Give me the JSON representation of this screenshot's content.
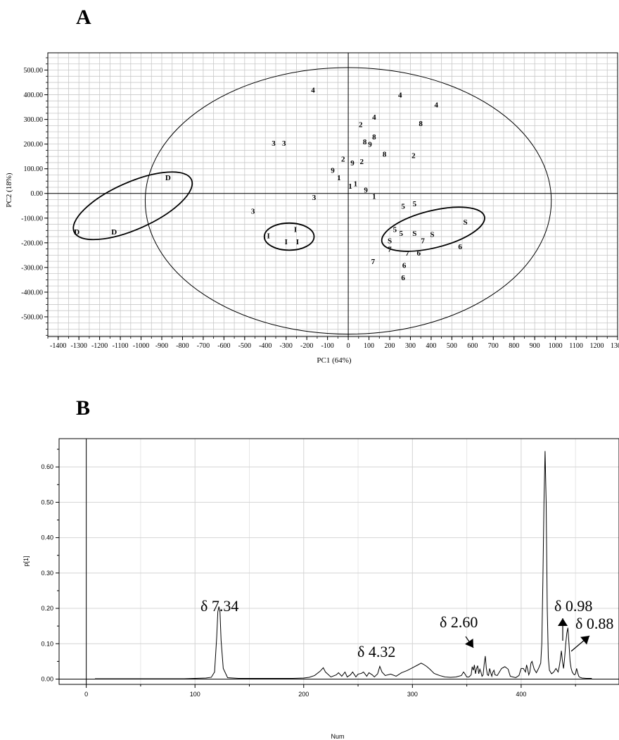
{
  "panels": {
    "a_label": "A",
    "b_label": "B"
  },
  "chart_data": [
    {
      "type": "scatter",
      "title": "",
      "xlabel": "PC1 (64%)",
      "ylabel": "PC2 (18%)",
      "xlim": [
        -1450,
        1300
      ],
      "ylim": [
        -580,
        570
      ],
      "xticks": [
        -1400,
        -1300,
        -1200,
        -1100,
        -1000,
        -900,
        -800,
        -700,
        -600,
        -500,
        -400,
        -300,
        -200,
        -100,
        0,
        100,
        200,
        300,
        400,
        500,
        600,
        700,
        800,
        900,
        1000,
        1100,
        1200,
        1300
      ],
      "xtick_labels": [
        "-1400",
        "-1300",
        "-1200",
        "-1100",
        "-1000",
        "-900",
        "-800",
        "-700",
        "-600",
        "-500",
        "-400",
        "-300",
        "-200",
        "-100",
        "0",
        "100",
        "200",
        "300",
        "400",
        "500",
        "600",
        "700",
        "800",
        "900",
        "1000",
        "1100",
        "1200",
        "1300"
      ],
      "yticks": [
        500,
        400,
        300,
        200,
        100,
        0,
        -100,
        -200,
        -300,
        -400,
        -500
      ],
      "ytick_labels": [
        "500.00",
        "400.00",
        "300.00",
        "200.00",
        "100.00",
        "0.00",
        "-100.00",
        "-200.00",
        "-300.00",
        "-400.00",
        "-500.00"
      ],
      "grid": true,
      "points": [
        {
          "label": "4",
          "x": -170,
          "y": 420
        },
        {
          "label": "4",
          "x": 250,
          "y": 400
        },
        {
          "label": "4",
          "x": 425,
          "y": 360
        },
        {
          "label": "4",
          "x": 125,
          "y": 310
        },
        {
          "label": "2",
          "x": 60,
          "y": 280
        },
        {
          "label": "8",
          "x": 350,
          "y": 285
        },
        {
          "label": "8",
          "x": 125,
          "y": 230
        },
        {
          "label": "8",
          "x": 80,
          "y": 210
        },
        {
          "label": "9",
          "x": 105,
          "y": 200
        },
        {
          "label": "8",
          "x": 175,
          "y": 160
        },
        {
          "label": "2",
          "x": 315,
          "y": 155
        },
        {
          "label": "3",
          "x": -360,
          "y": 205
        },
        {
          "label": "3",
          "x": -310,
          "y": 205
        },
        {
          "label": "2",
          "x": -25,
          "y": 140
        },
        {
          "label": "9",
          "x": 20,
          "y": 125
        },
        {
          "label": "2",
          "x": 65,
          "y": 130
        },
        {
          "label": "9",
          "x": -75,
          "y": 95
        },
        {
          "label": "1",
          "x": -45,
          "y": 65
        },
        {
          "label": "1",
          "x": 10,
          "y": 30
        },
        {
          "label": "1",
          "x": 35,
          "y": 40
        },
        {
          "label": "9",
          "x": 85,
          "y": 15
        },
        {
          "label": "1",
          "x": 125,
          "y": -10
        },
        {
          "label": "3",
          "x": -165,
          "y": -15
        },
        {
          "label": "3",
          "x": -460,
          "y": -70
        },
        {
          "label": "D",
          "x": -870,
          "y": 65
        },
        {
          "label": "D",
          "x": -1310,
          "y": -155
        },
        {
          "label": "D",
          "x": -1130,
          "y": -155
        },
        {
          "label": "I",
          "x": -385,
          "y": -170
        },
        {
          "label": "I",
          "x": -255,
          "y": -145
        },
        {
          "label": "I",
          "x": -300,
          "y": -195
        },
        {
          "label": "I",
          "x": -245,
          "y": -195
        },
        {
          "label": "5",
          "x": 265,
          "y": -50
        },
        {
          "label": "5",
          "x": 320,
          "y": -40
        },
        {
          "label": "5",
          "x": 225,
          "y": -145
        },
        {
          "label": "5",
          "x": 255,
          "y": -160
        },
        {
          "label": "S",
          "x": 320,
          "y": -160
        },
        {
          "label": "S",
          "x": 405,
          "y": -165
        },
        {
          "label": "S",
          "x": 565,
          "y": -115
        },
        {
          "label": "S",
          "x": 200,
          "y": -190
        },
        {
          "label": "7",
          "x": 200,
          "y": -225
        },
        {
          "label": "7",
          "x": 360,
          "y": -190
        },
        {
          "label": "7",
          "x": 285,
          "y": -240
        },
        {
          "label": "6",
          "x": 340,
          "y": -240
        },
        {
          "label": "6",
          "x": 540,
          "y": -215
        },
        {
          "label": "7",
          "x": 120,
          "y": -275
        },
        {
          "label": "6",
          "x": 270,
          "y": -290
        },
        {
          "label": "6",
          "x": 265,
          "y": -340
        }
      ],
      "ellipses": [
        {
          "cx": 0,
          "cy": -30,
          "rx": 980,
          "ry": 540,
          "rotate_deg": 0
        },
        {
          "cx": -1040,
          "cy": -50,
          "rx": 310,
          "ry": 95,
          "rotate_deg": -24
        },
        {
          "cx": -285,
          "cy": -175,
          "rx": 120,
          "ry": 55,
          "rotate_deg": 0
        },
        {
          "cx": 410,
          "cy": -145,
          "rx": 255,
          "ry": 75,
          "rotate_deg": -14
        }
      ]
    },
    {
      "type": "line",
      "title": "",
      "xlabel": "Num",
      "ylabel": "p[1]",
      "xlim": [
        -25,
        490
      ],
      "ylim": [
        -0.015,
        0.68
      ],
      "xticks": [
        0,
        100,
        200,
        300,
        400
      ],
      "xtick_labels": [
        "0",
        "100",
        "200",
        "300",
        "400"
      ],
      "yticks": [
        0.0,
        0.1,
        0.2,
        0.3,
        0.4,
        0.5,
        0.6
      ],
      "ytick_labels": [
        "0.00",
        "0.10",
        "0.20",
        "0.30",
        "0.40",
        "0.50",
        "0.60"
      ],
      "grid": true,
      "x": [
        8,
        20,
        35,
        50,
        60,
        70,
        80,
        90,
        100,
        110,
        115,
        118,
        120,
        121,
        122,
        123,
        124,
        126,
        130,
        140,
        150,
        160,
        170,
        180,
        190,
        200,
        205,
        210,
        215,
        218,
        220,
        225,
        230,
        232,
        235,
        238,
        240,
        243,
        245,
        248,
        250,
        253,
        255,
        258,
        260,
        263,
        265,
        268,
        270,
        272,
        275,
        280,
        285,
        290,
        295,
        300,
        305,
        308,
        310,
        313,
        316,
        320,
        325,
        330,
        335,
        340,
        345,
        347,
        348,
        350,
        352,
        354,
        355,
        356,
        357,
        358,
        359,
        360,
        361,
        362,
        363,
        364,
        365,
        366,
        367,
        368,
        369,
        370,
        371,
        372,
        373,
        374,
        375,
        376,
        378,
        380,
        382,
        385,
        388,
        390,
        395,
        398,
        400,
        402,
        404,
        405,
        406,
        407,
        408,
        409,
        410,
        412,
        414,
        416,
        418,
        419,
        420,
        421,
        422,
        423,
        424,
        425,
        426,
        428,
        430,
        432,
        434,
        435,
        436,
        437,
        438,
        439,
        440,
        441,
        442,
        443,
        444,
        445,
        446,
        447,
        448,
        449,
        450,
        451,
        452,
        453,
        454,
        456,
        460,
        465
      ],
      "y": [
        0.001,
        0.001,
        0.001,
        0.001,
        0.001,
        0.001,
        0.001,
        0.001,
        0.002,
        0.003,
        0.005,
        0.02,
        0.12,
        0.19,
        0.205,
        0.19,
        0.11,
        0.03,
        0.004,
        0.002,
        0.002,
        0.002,
        0.002,
        0.002,
        0.002,
        0.003,
        0.005,
        0.01,
        0.022,
        0.032,
        0.02,
        0.006,
        0.012,
        0.018,
        0.008,
        0.02,
        0.006,
        0.012,
        0.02,
        0.006,
        0.014,
        0.016,
        0.02,
        0.008,
        0.018,
        0.012,
        0.006,
        0.015,
        0.036,
        0.02,
        0.01,
        0.014,
        0.008,
        0.018,
        0.024,
        0.032,
        0.04,
        0.045,
        0.042,
        0.036,
        0.028,
        0.016,
        0.01,
        0.006,
        0.005,
        0.006,
        0.01,
        0.02,
        0.016,
        0.006,
        0.006,
        0.012,
        0.035,
        0.025,
        0.04,
        0.015,
        0.03,
        0.038,
        0.015,
        0.028,
        0.02,
        0.008,
        0.012,
        0.042,
        0.065,
        0.03,
        0.012,
        0.01,
        0.03,
        0.018,
        0.008,
        0.02,
        0.025,
        0.012,
        0.01,
        0.02,
        0.03,
        0.035,
        0.028,
        0.008,
        0.004,
        0.01,
        0.03,
        0.03,
        0.02,
        0.04,
        0.028,
        0.012,
        0.02,
        0.045,
        0.05,
        0.028,
        0.018,
        0.03,
        0.045,
        0.1,
        0.28,
        0.5,
        0.645,
        0.5,
        0.2,
        0.06,
        0.025,
        0.015,
        0.02,
        0.03,
        0.02,
        0.035,
        0.055,
        0.08,
        0.05,
        0.03,
        0.06,
        0.1,
        0.13,
        0.145,
        0.1,
        0.05,
        0.03,
        0.02,
        0.015,
        0.012,
        0.015,
        0.03,
        0.018,
        0.008,
        0.005,
        0.003,
        0.002,
        0.002
      ],
      "annotations": [
        {
          "text": "δ 7.34",
          "x": 122,
          "y": 0.205
        },
        {
          "text": "δ 4.32",
          "x": 270,
          "y": 0.036
        },
        {
          "text": "δ 2.60",
          "x": 356,
          "y": 0.035
        },
        {
          "text": "δ 0.98",
          "x": 436,
          "y": 0.1
        },
        {
          "text": "δ 0.88",
          "x": 444,
          "y": 0.145
        }
      ]
    }
  ]
}
